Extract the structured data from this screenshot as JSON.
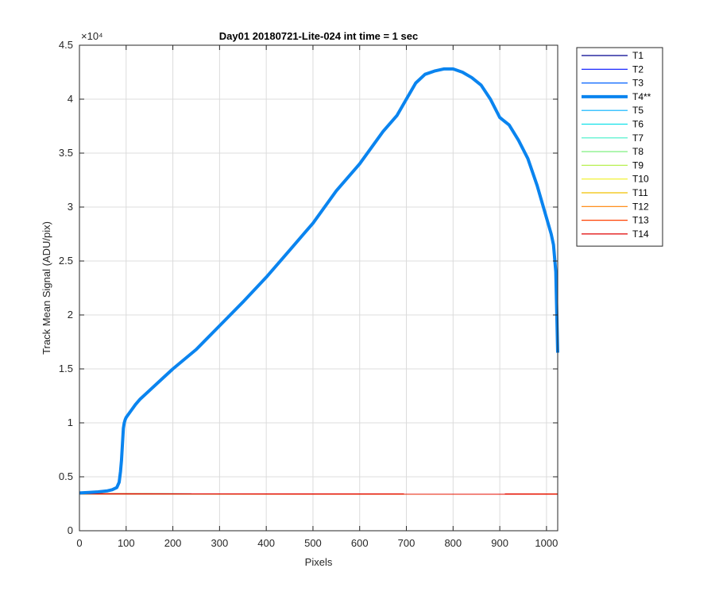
{
  "chart_data": {
    "type": "line",
    "title": "Day01 20180721-Lite-024 int time = 1 sec",
    "xlabel": "Pixels",
    "ylabel": "Track Mean Signal (ADU/pix)",
    "exponent_label": "×10⁴",
    "xlim": [
      0,
      1024
    ],
    "ylim": [
      0,
      45000
    ],
    "grid": true,
    "legend_position": "outside-top-right",
    "xticks": [
      0,
      100,
      200,
      300,
      400,
      500,
      600,
      700,
      800,
      900,
      1000
    ],
    "xtick_labels": [
      "0",
      "100",
      "200",
      "300",
      "400",
      "500",
      "600",
      "700",
      "800",
      "900",
      "1000"
    ],
    "yticks": [
      0,
      5000,
      10000,
      15000,
      20000,
      25000,
      30000,
      35000,
      40000,
      45000
    ],
    "ytick_labels": [
      "0",
      "0.5",
      "1",
      "1.5",
      "2",
      "2.5",
      "3",
      "3.5",
      "4",
      "4.5"
    ],
    "series": [
      {
        "name": "T1",
        "color": "#00008f",
        "width": 1.2,
        "x": [
          0,
          1024
        ],
        "y": [
          3420,
          3400
        ]
      },
      {
        "name": "T2",
        "color": "#0010ff",
        "width": 1.2,
        "x": [
          0,
          1024
        ],
        "y": [
          3420,
          3400
        ]
      },
      {
        "name": "T3",
        "color": "#0060ff",
        "width": 1.2,
        "x": [
          0,
          1024
        ],
        "y": [
          3420,
          3400
        ]
      },
      {
        "name": "T4**",
        "color": "#0a84ef",
        "width": 4,
        "x": [
          0,
          20,
          40,
          60,
          70,
          80,
          85,
          88,
          90,
          92,
          94,
          96,
          98,
          100,
          110,
          120,
          130,
          150,
          180,
          200,
          250,
          300,
          350,
          400,
          450,
          500,
          550,
          600,
          650,
          680,
          700,
          720,
          740,
          760,
          780,
          800,
          820,
          840,
          860,
          880,
          900,
          920,
          940,
          960,
          980,
          1000,
          1010,
          1015,
          1020,
          1024
        ],
        "y": [
          3500,
          3550,
          3600,
          3700,
          3800,
          4000,
          4500,
          5500,
          6500,
          8000,
          9500,
          10000,
          10300,
          10500,
          11100,
          11700,
          12200,
          13000,
          14200,
          15000,
          16800,
          19000,
          21200,
          23500,
          26000,
          28500,
          31500,
          34000,
          37000,
          38500,
          40000,
          41500,
          42300,
          42600,
          42800,
          42800,
          42500,
          42000,
          41300,
          40000,
          38300,
          37600,
          36200,
          34500,
          32000,
          29000,
          27500,
          26500,
          24000,
          16500
        ]
      },
      {
        "name": "T5",
        "color": "#00b0ff",
        "width": 1.2,
        "x": [
          0,
          1024
        ],
        "y": [
          3420,
          3400
        ]
      },
      {
        "name": "T6",
        "color": "#10e0e8",
        "width": 1.2,
        "x": [
          0,
          1024
        ],
        "y": [
          3420,
          3400
        ]
      },
      {
        "name": "T7",
        "color": "#40f0c8",
        "width": 1.2,
        "x": [
          0,
          1024
        ],
        "y": [
          3420,
          3400
        ]
      },
      {
        "name": "T8",
        "color": "#7ff080",
        "width": 1.2,
        "x": [
          0,
          1024
        ],
        "y": [
          3420,
          3400
        ]
      },
      {
        "name": "T9",
        "color": "#b8f050",
        "width": 1.2,
        "x": [
          0,
          1024
        ],
        "y": [
          3420,
          3400
        ]
      },
      {
        "name": "T10",
        "color": "#f0f020",
        "width": 1.2,
        "x": [
          0,
          1024
        ],
        "y": [
          3420,
          3400
        ]
      },
      {
        "name": "T11",
        "color": "#f0c000",
        "width": 1.2,
        "x": [
          0,
          1024
        ],
        "y": [
          3420,
          3400
        ]
      },
      {
        "name": "T12",
        "color": "#ff8000",
        "width": 1.2,
        "x": [
          0,
          1024
        ],
        "y": [
          3420,
          3400
        ]
      },
      {
        "name": "T13",
        "color": "#ff4000",
        "width": 1.2,
        "x": [
          0,
          1024
        ],
        "y": [
          3420,
          3400
        ]
      },
      {
        "name": "T14",
        "color": "#e00000",
        "width": 1.2,
        "x": [
          0,
          1024
        ],
        "y": [
          3420,
          3400
        ]
      }
    ]
  }
}
